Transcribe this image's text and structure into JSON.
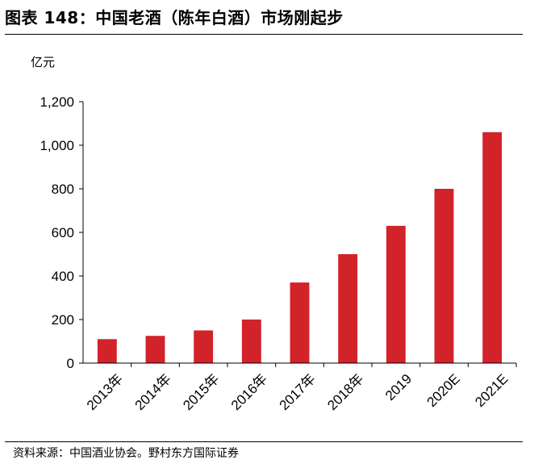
{
  "title": "图表 148：中国老酒（陈年白酒）市场刚起步",
  "unit": "亿元",
  "source": "资料来源：中国酒业协会。野村东方国际证券",
  "colors": {
    "bar": "#D2222A",
    "axis": "#000000",
    "text": "#000000"
  },
  "chart_data": {
    "type": "bar",
    "categories": [
      "2013年",
      "2014年",
      "2015年",
      "2016年",
      "2017年",
      "2018年",
      "2019",
      "2020E",
      "2021E"
    ],
    "values": [
      110,
      125,
      150,
      200,
      370,
      500,
      630,
      800,
      1060
    ],
    "ylabel": "亿元",
    "ylim": [
      0,
      1200
    ],
    "yticks": [
      0,
      200,
      400,
      600,
      800,
      1000,
      1200
    ],
    "ytick_labels": [
      "0",
      "200",
      "400",
      "600",
      "800",
      "1,000",
      "1,200"
    ],
    "grid": false,
    "legend": "none"
  }
}
